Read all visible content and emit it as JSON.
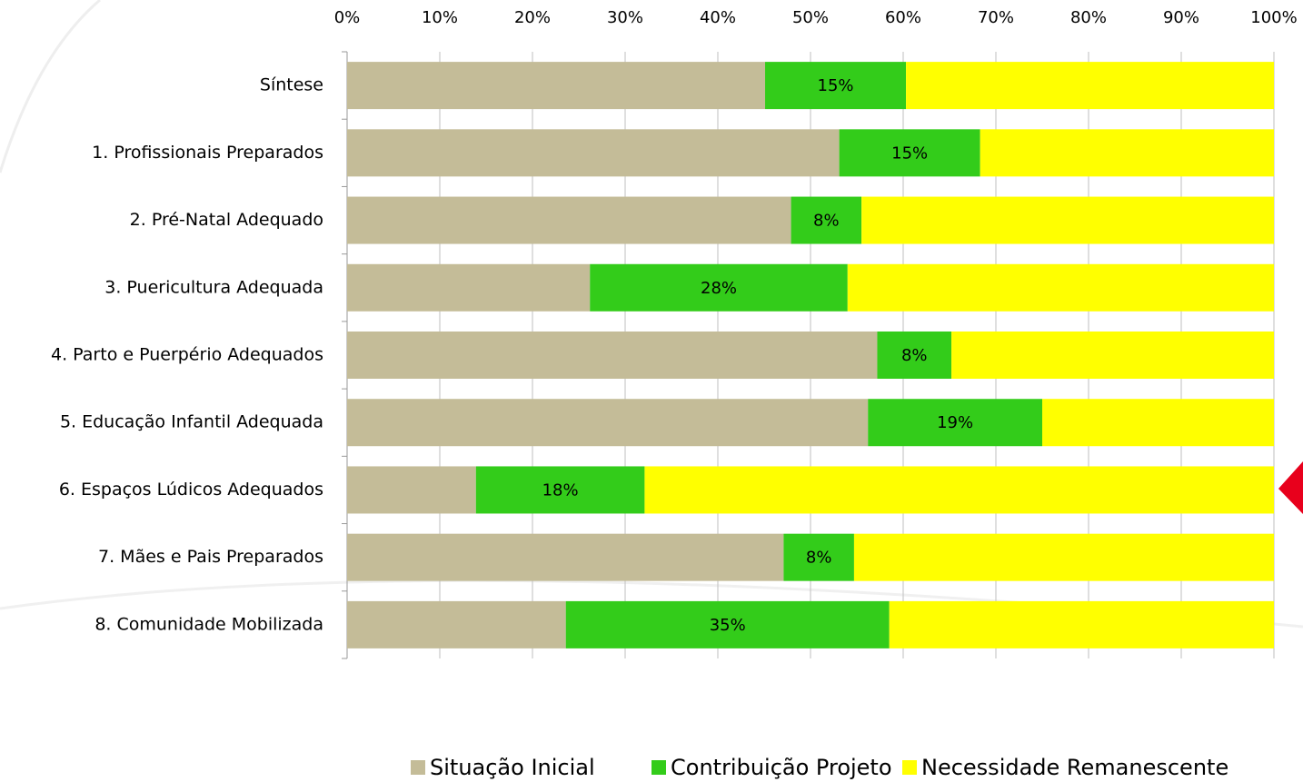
{
  "chart_data": {
    "type": "stacked_bar_horizontal",
    "categories": [
      "Síntese",
      "1. Profissionais Preparados",
      "2. Pré-Natal Adequado",
      "3. Puericultura Adequada",
      "4. Parto e Puerpério Adequados",
      "5. Educação Infantil Adequada",
      "6. Espaços Lúdicos Adequados",
      "7. Mães e Pais Preparados",
      "8. Comunidade Mobilizada"
    ],
    "series": [
      {
        "name": "Situação Inicial",
        "color": "#c4bc98",
        "values": [
          45.1,
          53.1,
          47.9,
          26.2,
          57.2,
          56.2,
          13.9,
          47.1,
          23.6
        ]
      },
      {
        "name": "Contribuição Projeto",
        "color": "#33cc1a",
        "values": [
          15.2,
          15.2,
          7.6,
          27.8,
          8.0,
          18.8,
          18.2,
          7.6,
          34.9
        ],
        "value_labels": [
          "15%",
          "15%",
          "8%",
          "28%",
          "8%",
          "19%",
          "18%",
          "8%",
          "35%"
        ]
      },
      {
        "name": "Necessidade Remanescente",
        "color": "#ffff00",
        "values": [
          39.7,
          31.7,
          44.5,
          46.0,
          34.8,
          25.0,
          67.9,
          45.3,
          41.5
        ]
      }
    ],
    "xlim": [
      0,
      100
    ],
    "xticks": [
      {
        "value": 0,
        "label": "0%"
      },
      {
        "value": 10,
        "label": "10%"
      },
      {
        "value": 20,
        "label": "20%"
      },
      {
        "value": 30,
        "label": "30%"
      },
      {
        "value": 40,
        "label": "40%"
      },
      {
        "value": 50,
        "label": "50%"
      },
      {
        "value": 60,
        "label": "60%"
      },
      {
        "value": 70,
        "label": "70%"
      },
      {
        "value": 80,
        "label": "80%"
      },
      {
        "value": 90,
        "label": "90%"
      },
      {
        "value": 100,
        "label": "100%"
      }
    ],
    "grid": true,
    "legend": "bottom"
  }
}
